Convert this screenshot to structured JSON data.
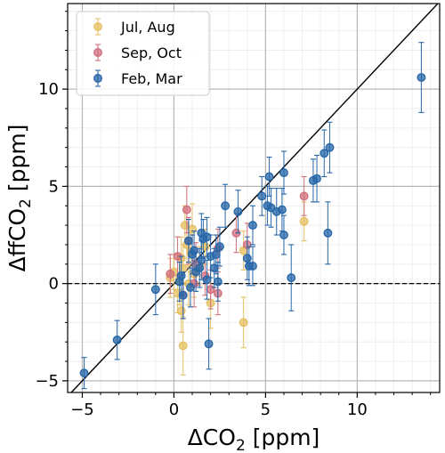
{
  "chart_data": {
    "type": "scatter",
    "title": "",
    "xlabel": "ΔCO",
    "xlabel_sub": "2",
    "xlabel_unit": " [ppm]",
    "ylabel": "ΔffCO",
    "ylabel_sub": "2",
    "ylabel_unit": " [ppm]",
    "xlim": [
      -5.8,
      14.5
    ],
    "ylim": [
      -5.6,
      14.4
    ],
    "xticks": [
      -5,
      0,
      5,
      10
    ],
    "yticks": [
      -5,
      0,
      5,
      10
    ],
    "x_minor_step": 1,
    "y_minor_step": 1,
    "grid": true,
    "reference_lines": [
      {
        "kind": "one-to-one",
        "style": "solid"
      },
      {
        "kind": "zero",
        "style": "dashed"
      }
    ],
    "legend": {
      "placement": "top-left"
    },
    "series": [
      {
        "name": "Jul, Aug",
        "color": "#e5c063",
        "points": [
          {
            "x": 0.4,
            "y": 1.3,
            "err": 1.1
          },
          {
            "x": 0.5,
            "y": 0.8,
            "err": 1.2
          },
          {
            "x": 0.6,
            "y": 3.0,
            "err": 1.0
          },
          {
            "x": 0.3,
            "y": 0.2,
            "err": 1.3
          },
          {
            "x": 0.7,
            "y": 2.0,
            "err": 1.1
          },
          {
            "x": 0.2,
            "y": -0.5,
            "err": 1.0
          },
          {
            "x": 0.9,
            "y": 1.6,
            "err": 1.0
          },
          {
            "x": 1.1,
            "y": 0.5,
            "err": 1.2
          },
          {
            "x": 0.0,
            "y": 0.6,
            "err": 0.9
          },
          {
            "x": 0.5,
            "y": -3.2,
            "err": 1.5
          },
          {
            "x": 0.4,
            "y": -1.4,
            "err": 1.1
          },
          {
            "x": 1.4,
            "y": 0.9,
            "err": 1.0
          },
          {
            "x": 1.7,
            "y": 1.9,
            "err": 0.9
          },
          {
            "x": 2.0,
            "y": -1.0,
            "err": 1.3
          },
          {
            "x": 3.8,
            "y": 1.7,
            "err": 1.0
          },
          {
            "x": 3.8,
            "y": -2.0,
            "err": 1.3
          },
          {
            "x": 7.1,
            "y": 3.2,
            "err": 1.0
          },
          {
            "x": 1.0,
            "y": 2.8,
            "err": 1.3
          },
          {
            "x": -0.2,
            "y": 0.3,
            "err": 1.0
          },
          {
            "x": 0.8,
            "y": 0.0,
            "err": 1.1
          }
        ]
      },
      {
        "name": "Sep, Oct",
        "color": "#d16f7c",
        "points": [
          {
            "x": 0.7,
            "y": 3.8,
            "err": 1.2
          },
          {
            "x": 0.8,
            "y": 2.2,
            "err": 1.2
          },
          {
            "x": 0.2,
            "y": 1.4,
            "err": 1.0
          },
          {
            "x": -0.2,
            "y": 0.5,
            "err": 1.0
          },
          {
            "x": 1.2,
            "y": 1.0,
            "err": 1.1
          },
          {
            "x": 2.4,
            "y": 1.8,
            "err": 1.0
          },
          {
            "x": 3.4,
            "y": 2.6,
            "err": 1.0
          },
          {
            "x": 4.0,
            "y": 2.0,
            "err": 1.1
          },
          {
            "x": 2.4,
            "y": -0.5,
            "err": 1.1
          },
          {
            "x": 1.7,
            "y": 0.4,
            "err": 1.0
          },
          {
            "x": 1.1,
            "y": 0.0,
            "err": 1.2
          },
          {
            "x": 0.5,
            "y": -0.6,
            "err": 1.2
          },
          {
            "x": 2.0,
            "y": -0.3,
            "err": 1.0
          },
          {
            "x": 7.1,
            "y": 4.5,
            "err": 1.0
          }
        ]
      },
      {
        "name": "Feb, Mar",
        "color": "#2566a8",
        "points": [
          {
            "x": -4.9,
            "y": -4.6,
            "err": 0.8
          },
          {
            "x": -3.1,
            "y": -2.9,
            "err": 1.0
          },
          {
            "x": -1.0,
            "y": -0.3,
            "err": 1.3
          },
          {
            "x": 0.3,
            "y": 0.1,
            "err": 1.0
          },
          {
            "x": 0.5,
            "y": -0.6,
            "err": 1.2
          },
          {
            "x": 0.8,
            "y": 2.2,
            "err": 1.1
          },
          {
            "x": 1.0,
            "y": 1.5,
            "err": 1.0
          },
          {
            "x": 1.2,
            "y": 0.6,
            "err": 1.0
          },
          {
            "x": 1.5,
            "y": 1.2,
            "err": 1.0
          },
          {
            "x": 1.6,
            "y": 2.3,
            "err": 1.0
          },
          {
            "x": 1.8,
            "y": 0.2,
            "err": 1.0
          },
          {
            "x": 2.0,
            "y": 1.4,
            "err": 1.1
          },
          {
            "x": 2.2,
            "y": 0.8,
            "err": 1.0
          },
          {
            "x": 2.3,
            "y": 1.5,
            "err": 1.0
          },
          {
            "x": 2.5,
            "y": 1.9,
            "err": 1.0
          },
          {
            "x": 2.8,
            "y": 4.0,
            "err": 1.1
          },
          {
            "x": 1.9,
            "y": -3.1,
            "err": 1.3
          },
          {
            "x": 3.5,
            "y": 3.7,
            "err": 1.1
          },
          {
            "x": 4.0,
            "y": 1.3,
            "err": 1.1
          },
          {
            "x": 4.1,
            "y": 0.9,
            "err": 1.0
          },
          {
            "x": 4.3,
            "y": 3.0,
            "err": 1.0
          },
          {
            "x": 4.3,
            "y": 0.9,
            "err": 1.0
          },
          {
            "x": 4.8,
            "y": 4.5,
            "err": 1.0
          },
          {
            "x": 5.1,
            "y": 4.0,
            "err": 1.0
          },
          {
            "x": 5.2,
            "y": 5.5,
            "err": 1.0
          },
          {
            "x": 5.3,
            "y": 3.9,
            "err": 1.0
          },
          {
            "x": 5.6,
            "y": 3.7,
            "err": 1.2
          },
          {
            "x": 5.9,
            "y": 3.8,
            "err": 1.1
          },
          {
            "x": 6.0,
            "y": 2.5,
            "err": 1.0
          },
          {
            "x": 6.0,
            "y": 5.7,
            "err": 1.1
          },
          {
            "x": 6.4,
            "y": 0.3,
            "err": 1.7
          },
          {
            "x": 7.6,
            "y": 5.3,
            "err": 1.1
          },
          {
            "x": 7.8,
            "y": 5.4,
            "err": 1.2
          },
          {
            "x": 8.2,
            "y": 6.7,
            "err": 1.2
          },
          {
            "x": 8.4,
            "y": 2.6,
            "err": 1.6
          },
          {
            "x": 8.5,
            "y": 7.0,
            "err": 1.3
          },
          {
            "x": 13.5,
            "y": 10.6,
            "err": 1.8
          },
          {
            "x": 0.4,
            "y": 0.4,
            "err": 1.0
          },
          {
            "x": 0.9,
            "y": -0.2,
            "err": 1.0
          },
          {
            "x": 1.4,
            "y": 0.8,
            "err": 1.0
          },
          {
            "x": 1.8,
            "y": 2.4,
            "err": 1.0
          },
          {
            "x": 2.4,
            "y": 0.1,
            "err": 1.0
          },
          {
            "x": 1.1,
            "y": 1.7,
            "err": 1.0
          },
          {
            "x": 1.5,
            "y": 2.6,
            "err": 1.0
          }
        ]
      }
    ]
  }
}
